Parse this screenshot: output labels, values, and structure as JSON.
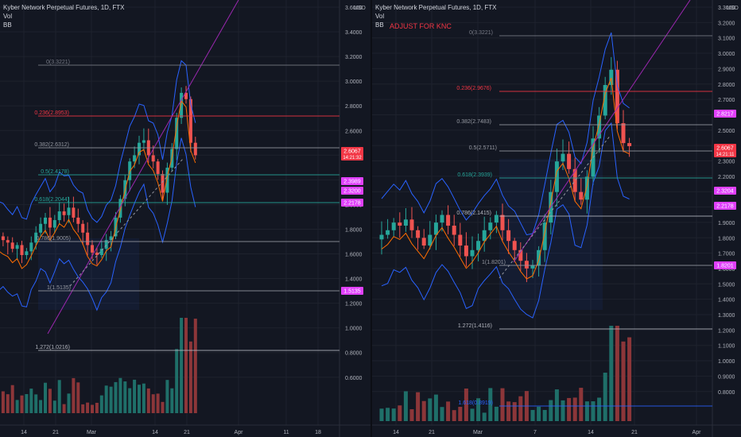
{
  "colors": {
    "background": "#131722",
    "up": "#26a69a",
    "down": "#ef5350",
    "vol_up": "#1f6f69",
    "vol_down": "#8c3639",
    "bb": "#2962ff",
    "bb_mid": "#ff6d00",
    "trend": "#9c27b0",
    "axis_text": "#b2b5be",
    "badge_magenta": "#e040fb",
    "badge_red": "#f23645"
  },
  "charts": [
    {
      "id": "left",
      "legend": {
        "symbol": "Kyber Network Perpetual Futures, 1D, FTX",
        "vol": "Vol",
        "bb": "BB"
      },
      "note": "",
      "currency": "USD",
      "y_ticks": [
        "3.6000",
        "3.4000",
        "3.2000",
        "3.0000",
        "2.8000",
        "2.6000",
        "2.4000",
        "2.2000",
        "2.0000",
        "1.8000",
        "1.6000",
        "1.4000",
        "1.2000",
        "1.0000",
        "0.8000",
        "0.6000"
      ],
      "x_ticks": [
        "14",
        "21",
        "Mar",
        "14",
        "21",
        "Apr",
        "11",
        "18"
      ],
      "fib_levels": [
        {
          "label": "0(3.3221)",
          "color": "#787b86"
        },
        {
          "label": "0.236(2.8953)",
          "color": "#f23645"
        },
        {
          "label": "0.382(2.6312)",
          "color": "#9598a1"
        },
        {
          "label": "0.5(2.4178)",
          "color": "#26a69a"
        },
        {
          "label": "0.618(2.2044)",
          "color": "#26a69a"
        },
        {
          "label": "0.786(1.9005)",
          "color": "#9598a1"
        },
        {
          "label": "1(1.5135)",
          "color": "#9598a1"
        },
        {
          "label": "1.272(1.0216)",
          "color": "#b2b5be"
        }
      ],
      "badges": [
        {
          "value": "2.6067",
          "sub": "14:21:32",
          "color": "#f23645"
        },
        {
          "value": "2.3989",
          "color": "#e040fb"
        },
        {
          "value": "2.3200",
          "color": "#e040fb"
        },
        {
          "value": "2.2178",
          "color": "#e040fb"
        },
        {
          "value": "1.5135",
          "color": "#e040fb"
        }
      ]
    },
    {
      "id": "right",
      "legend": {
        "symbol": "Kyber Network Perpetual Futures, 1D, FTX",
        "vol": "Vol",
        "bb": "BB"
      },
      "note": "ADJUST FOR KNC",
      "currency": "USD",
      "y_ticks": [
        "3.3000",
        "3.2000",
        "3.1000",
        "3.0000",
        "2.9000",
        "2.8000",
        "2.7000",
        "2.6000",
        "2.5000",
        "2.4000",
        "2.3000",
        "2.2000",
        "2.1000",
        "2.0000",
        "1.9000",
        "1.8000",
        "1.7000",
        "1.6000",
        "1.5000",
        "1.4000",
        "1.3000",
        "1.2000",
        "1.1000",
        "1.0000",
        "0.9000",
        "0.8000"
      ],
      "x_ticks": [
        "14",
        "21",
        "Mar",
        "7",
        "14",
        "21",
        "Apr"
      ],
      "fib_levels": [
        {
          "label": "0(3.3221)",
          "color": "#787b86"
        },
        {
          "label": "0.236(2.9676)",
          "color": "#f23645"
        },
        {
          "label": "0.382(2.7483)",
          "color": "#9598a1"
        },
        {
          "label": "0.5(2.5711)",
          "color": "#9598a1"
        },
        {
          "label": "0.618(2.3939)",
          "color": "#26a69a"
        },
        {
          "label": "0.786(2.1415)",
          "color": "#b2b5be"
        },
        {
          "label": "1(1.8201)",
          "color": "#9598a1"
        },
        {
          "label": "1.272(1.4116)",
          "color": "#b2b5be"
        },
        {
          "label": "1.618(0.8919)",
          "color": "#2962ff"
        }
      ],
      "badges": [
        {
          "value": "2.8217",
          "color": "#e040fb"
        },
        {
          "value": "2.6067",
          "sub": "14:21:11",
          "color": "#f23645"
        },
        {
          "value": "2.3204",
          "color": "#e040fb"
        },
        {
          "value": "2.2178",
          "color": "#e040fb"
        },
        {
          "value": "1.8201",
          "color": "#e040fb"
        }
      ]
    }
  ]
}
